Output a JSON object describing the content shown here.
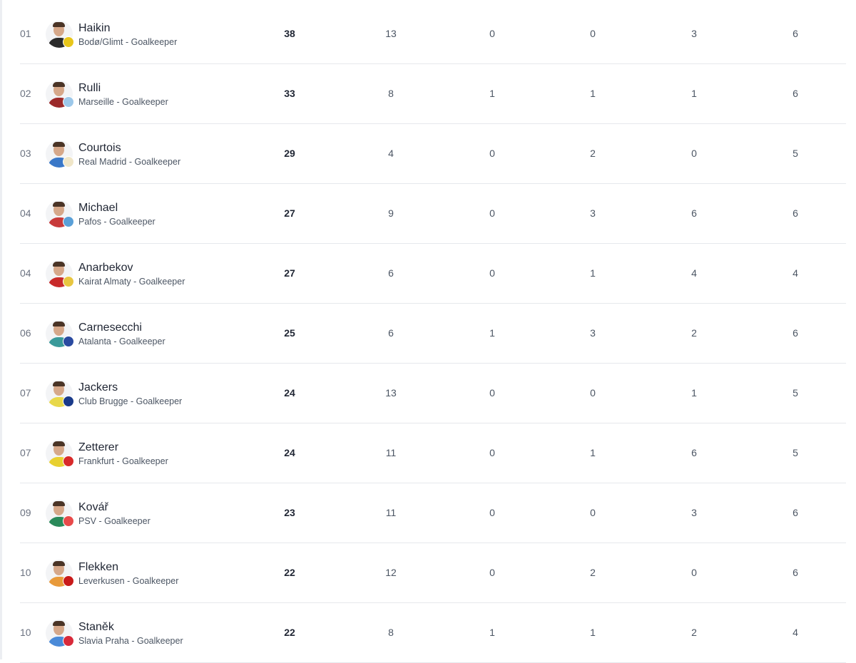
{
  "players": [
    {
      "rank": "01",
      "name": "Haikin",
      "team": "Bodø/Glimt - Goalkeeper",
      "stats": [
        "38",
        "13",
        "0",
        "0",
        "3",
        "6"
      ],
      "shirt": "#2b2b2b",
      "badge": "#e8c61a"
    },
    {
      "rank": "02",
      "name": "Rulli",
      "team": "Marseille - Goalkeeper",
      "stats": [
        "33",
        "8",
        "1",
        "1",
        "1",
        "6"
      ],
      "shirt": "#9b2a2a",
      "badge": "#9cc8ea"
    },
    {
      "rank": "03",
      "name": "Courtois",
      "team": "Real Madrid - Goalkeeper",
      "stats": [
        "29",
        "4",
        "0",
        "2",
        "0",
        "5"
      ],
      "shirt": "#3a78c8",
      "badge": "#f0e6c8"
    },
    {
      "rank": "04",
      "name": "Michael",
      "team": "Pafos - Goalkeeper",
      "stats": [
        "27",
        "9",
        "0",
        "3",
        "6",
        "6"
      ],
      "shirt": "#c83a3a",
      "badge": "#5aa0d8"
    },
    {
      "rank": "04",
      "name": "Anarbekov",
      "team": "Kairat Almaty - Goalkeeper",
      "stats": [
        "27",
        "6",
        "0",
        "1",
        "4",
        "4"
      ],
      "shirt": "#c82a2a",
      "badge": "#e8c640"
    },
    {
      "rank": "06",
      "name": "Carnesecchi",
      "team": "Atalanta - Goalkeeper",
      "stats": [
        "25",
        "6",
        "1",
        "3",
        "2",
        "6"
      ],
      "shirt": "#3a9a9a",
      "badge": "#2a4aa0"
    },
    {
      "rank": "07",
      "name": "Jackers",
      "team": "Club Brugge - Goalkeeper",
      "stats": [
        "24",
        "13",
        "0",
        "0",
        "1",
        "5"
      ],
      "shirt": "#e8d84a",
      "badge": "#1a3a8a"
    },
    {
      "rank": "07",
      "name": "Zetterer",
      "team": "Frankfurt - Goalkeeper",
      "stats": [
        "24",
        "11",
        "0",
        "1",
        "6",
        "5"
      ],
      "shirt": "#e8d030",
      "badge": "#d82a2a"
    },
    {
      "rank": "09",
      "name": "Kovář",
      "team": "PSV - Goalkeeper",
      "stats": [
        "23",
        "11",
        "0",
        "0",
        "3",
        "6"
      ],
      "shirt": "#2a8a5a",
      "badge": "#e84a4a"
    },
    {
      "rank": "10",
      "name": "Flekken",
      "team": "Leverkusen - Goalkeeper",
      "stats": [
        "22",
        "12",
        "0",
        "2",
        "0",
        "6"
      ],
      "shirt": "#e89a3a",
      "badge": "#c81a1a"
    },
    {
      "rank": "10",
      "name": "Staněk",
      "team": "Slavia Praha - Goalkeeper",
      "stats": [
        "22",
        "8",
        "1",
        "1",
        "2",
        "4"
      ],
      "shirt": "#4a8ad8",
      "badge": "#d82a3a"
    }
  ]
}
